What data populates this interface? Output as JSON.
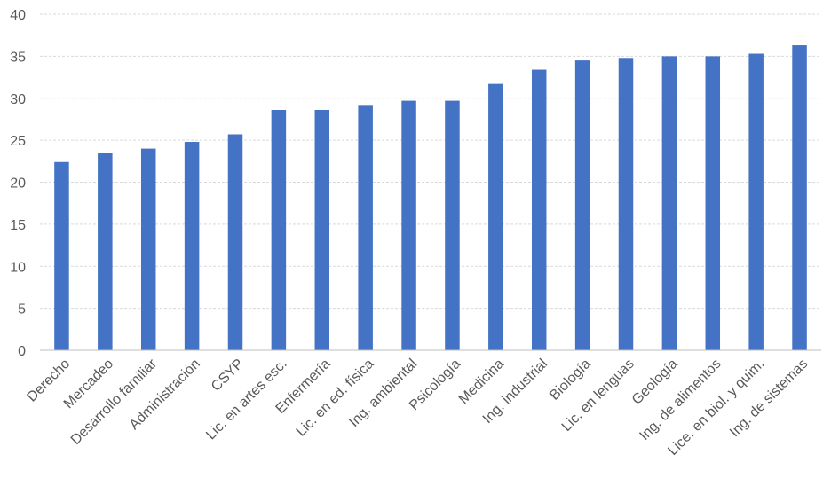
{
  "chart_data": {
    "type": "bar",
    "categories": [
      "Derecho",
      "Mercadeo",
      "Desarrollo familiar",
      "Administración",
      "CSYP",
      "Lic. en artes esc.",
      "Enfermería",
      "Lic. en ed. física",
      "Ing. ambiental",
      "Psicología",
      "Medicina",
      "Ing. industrial",
      "Biología",
      "Lic. en lenguas",
      "Geología",
      "Ing. de alimentos",
      "Lice. en biol. y quim.",
      "Ing. de sistemas"
    ],
    "values": [
      22.4,
      23.5,
      24.0,
      24.8,
      25.7,
      28.6,
      28.6,
      29.2,
      29.7,
      29.7,
      31.7,
      33.4,
      34.5,
      34.8,
      35.0,
      35.0,
      35.3,
      36.3
    ],
    "yticks": [
      "0",
      "5",
      "10",
      "15",
      "20",
      "25",
      "30",
      "35",
      "40"
    ],
    "ylim": [
      0,
      40
    ],
    "grid": true,
    "color": "#4472c4"
  }
}
